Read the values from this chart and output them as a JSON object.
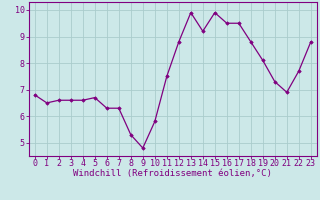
{
  "x": [
    0,
    1,
    2,
    3,
    4,
    5,
    6,
    7,
    8,
    9,
    10,
    11,
    12,
    13,
    14,
    15,
    16,
    17,
    18,
    19,
    20,
    21,
    22,
    23
  ],
  "y": [
    6.8,
    6.5,
    6.6,
    6.6,
    6.6,
    6.7,
    6.3,
    6.3,
    5.3,
    4.8,
    5.8,
    7.5,
    8.8,
    9.9,
    9.2,
    9.9,
    9.5,
    9.5,
    8.8,
    8.1,
    7.3,
    6.9,
    7.7,
    8.8
  ],
  "line_color": "#800080",
  "marker": "D",
  "marker_size": 1.8,
  "linewidth": 0.9,
  "bg_color": "#cce8e8",
  "grid_color": "#aacccc",
  "xlabel": "Windchill (Refroidissement éolien,°C)",
  "xlabel_color": "#800080",
  "xlabel_fontsize": 6.5,
  "ylabel_ticks": [
    5,
    6,
    7,
    8,
    9,
    10
  ],
  "xlim": [
    -0.5,
    23.5
  ],
  "ylim": [
    4.5,
    10.3
  ],
  "tick_fontsize": 6.0,
  "tick_color": "#800080",
  "axis_color": "#800080"
}
